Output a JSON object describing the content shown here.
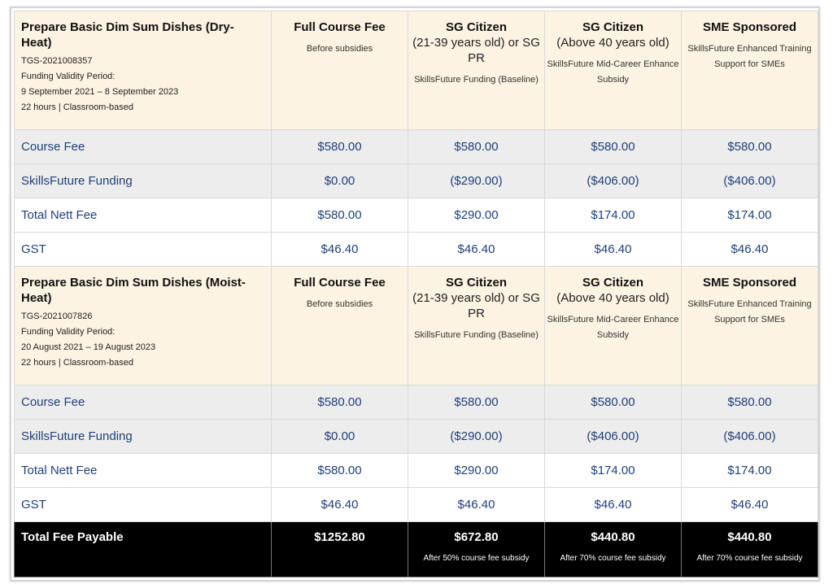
{
  "courses": [
    {
      "title": "Prepare Basic Dim Sum Dishes (Dry-Heat)",
      "code": "TGS-2021008357",
      "validity_label": "Funding Validity Period:",
      "validity": "9 September 2021 – 8 September 2023",
      "mode": "22 hours | Classroom-based",
      "rows": [
        {
          "label": "Course Fee",
          "values": [
            "$580.00",
            "$580.00",
            "$580.00",
            "$580.00"
          ]
        },
        {
          "label": "SkillsFuture Funding",
          "values": [
            "$0.00",
            "($290.00)",
            "($406.00)",
            "($406.00)"
          ]
        },
        {
          "label": "Total Nett Fee",
          "values": [
            "$580.00",
            "$290.00",
            "$174.00",
            "$174.00"
          ]
        },
        {
          "label": "GST",
          "values": [
            "$46.40",
            "$46.40",
            "$46.40",
            "$46.40"
          ]
        }
      ]
    },
    {
      "title": "Prepare Basic Dim Sum Dishes (Moist-Heat)",
      "code": "TGS-2021007826",
      "validity_label": "Funding Validity Period:",
      "validity": "20 August 2021 – 19 August 2023",
      "mode": "22 hours | Classroom-based",
      "rows": [
        {
          "label": "Course Fee",
          "values": [
            "$580.00",
            "$580.00",
            "$580.00",
            "$580.00"
          ]
        },
        {
          "label": "SkillsFuture Funding",
          "values": [
            "$0.00",
            "($290.00)",
            "($406.00)",
            "($406.00)"
          ]
        },
        {
          "label": "Total Nett Fee",
          "values": [
            "$580.00",
            "$290.00",
            "$174.00",
            "$174.00"
          ]
        },
        {
          "label": "GST",
          "values": [
            "$46.40",
            "$46.40",
            "$46.40",
            "$46.40"
          ]
        }
      ]
    }
  ],
  "columns": [
    {
      "title": "Full Course Fee",
      "sub": "",
      "note": "Before subsidies"
    },
    {
      "title": "SG Citizen",
      "sub": "(21-39 years old) or SG PR",
      "note": "SkillsFuture Funding (Baseline)"
    },
    {
      "title": "SG Citizen",
      "sub": "(Above 40 years old)",
      "note": "SkillsFuture Mid-Career Enhance Subsidy"
    },
    {
      "title": "SME Sponsored",
      "sub": "",
      "note": "SkillsFuture Enhanced Training Support for SMEs"
    }
  ],
  "total": {
    "label": "Total Fee Payable",
    "values": [
      "$1252.80",
      "$672.80",
      "$440.80",
      "$440.80"
    ],
    "notes": [
      "",
      "After 50% course fee subsidy",
      "After 70% course fee subsidy",
      "After 70% course fee subsidy"
    ]
  },
  "colors": {
    "header_bg": "#fdf3e3",
    "alt_row_bg": "#ededed",
    "value_text": "#1f3f7a",
    "total_bg": "#000000"
  }
}
